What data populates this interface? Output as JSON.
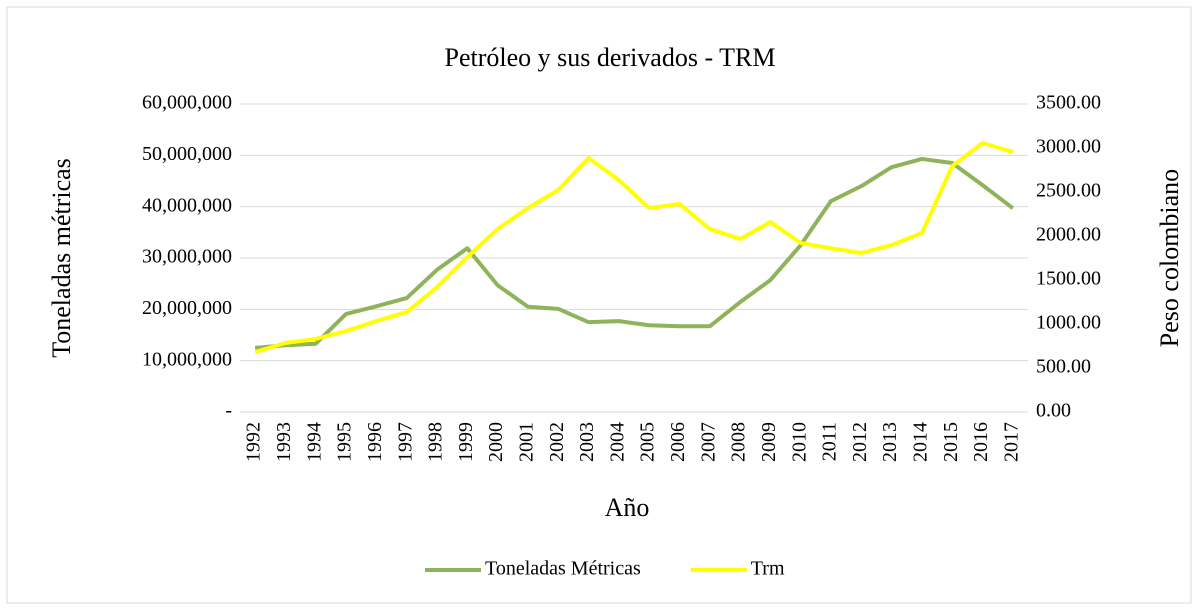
{
  "chart_data": {
    "type": "line",
    "title": "Petróleo y sus derivados - TRM",
    "xlabel": "Año",
    "ylabel": "Toneladas métricas",
    "y2label": "Peso colombiano",
    "categories": [
      "1992",
      "1993",
      "1994",
      "1995",
      "1996",
      "1997",
      "1998",
      "1999",
      "2000",
      "2001",
      "2002",
      "2003",
      "2004",
      "2005",
      "2006",
      "2007",
      "2008",
      "2009",
      "2010",
      "2011",
      "2012",
      "2013",
      "2014",
      "2015",
      "2016",
      "2017"
    ],
    "series": [
      {
        "name": "Toneladas Métricas",
        "color": "#8fb35a",
        "axis": "y",
        "values": [
          12500000,
          13000000,
          13300000,
          19100000,
          20600000,
          22200000,
          27700000,
          31900000,
          24700000,
          20500000,
          20100000,
          17500000,
          17700000,
          16900000,
          16700000,
          16700000,
          21400000,
          25700000,
          32500000,
          41100000,
          44000000,
          47700000,
          49300000,
          48500000,
          44200000,
          39700000
        ]
      },
      {
        "name": "Trm",
        "color": "#ffff00",
        "axis": "y2",
        "values": [
          682,
          784,
          830,
          920,
          1034,
          1136,
          1420,
          1761,
          2080,
          2318,
          2523,
          2886,
          2636,
          2318,
          2364,
          2080,
          1966,
          2159,
          1920,
          1861,
          1807,
          1898,
          2034,
          2795,
          3057,
          2955
        ]
      }
    ],
    "ylim": [
      0,
      60000000
    ],
    "yticks": [
      {
        "value": 0,
        "label": "-"
      },
      {
        "value": 10000000,
        "label": "10,000,000"
      },
      {
        "value": 20000000,
        "label": "20,000,000"
      },
      {
        "value": 30000000,
        "label": "30,000,000"
      },
      {
        "value": 40000000,
        "label": "40,000,000"
      },
      {
        "value": 50000000,
        "label": "50,000,000"
      },
      {
        "value": 60000000,
        "label": "60,000,000"
      }
    ],
    "y2lim": [
      0,
      3500
    ],
    "y2ticks": [
      {
        "value": 0,
        "label": "0.00"
      },
      {
        "value": 500,
        "label": "500.00"
      },
      {
        "value": 1000,
        "label": "1000.00"
      },
      {
        "value": 1500,
        "label": "1500.00"
      },
      {
        "value": 2000,
        "label": "2000.00"
      },
      {
        "value": 2500,
        "label": "2500.00"
      },
      {
        "value": 3000,
        "label": "3000.00"
      },
      {
        "value": 3500,
        "label": "3500.00"
      }
    ],
    "grid": true,
    "legend": "bottom"
  }
}
